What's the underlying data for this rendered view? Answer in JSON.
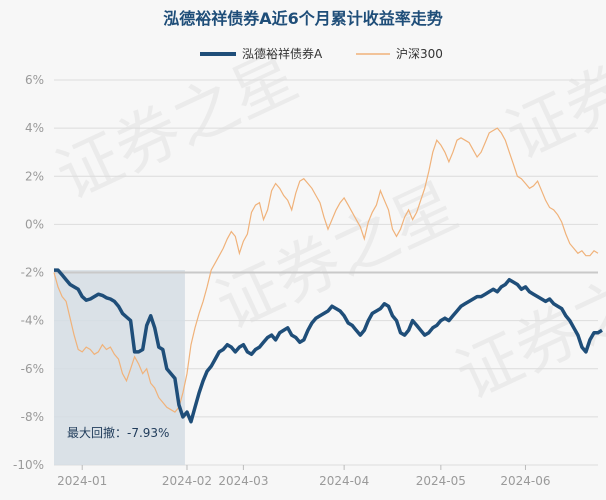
{
  "chart_data": {
    "type": "line",
    "title": "泓德裕祥债券A近6个月累计收益率走势",
    "xlabel": "",
    "ylabel": "",
    "ylim": [
      -10,
      7
    ],
    "yticks": [
      6,
      4,
      2,
      0,
      -2,
      -4,
      -6,
      -8,
      -10
    ],
    "ytick_labels": [
      "6%",
      "4%",
      "2%",
      "0%",
      "-2%",
      "-4%",
      "-6%",
      "-8%",
      "-10%"
    ],
    "x_tick_labels": [
      "2024-01",
      "2024-02",
      "2024-03",
      "2024-04",
      "2024-05",
      "2024-06"
    ],
    "x_tick_positions": [
      7,
      33,
      47,
      72,
      96,
      117
    ],
    "x_range": [
      0,
      135
    ],
    "grid": true,
    "legend_placement": "top-center",
    "reference_line": -2,
    "annotation": "最大回撤：-7.93%",
    "drawdown_range": [
      0,
      32
    ],
    "watermark": "证券之星",
    "colors": {
      "fund": "#1f4e79",
      "index": "#f0b27a",
      "drawdown": "#d5dde4",
      "reference": "#c9c9c9",
      "grid": "#dcdcdc",
      "title": "#1f4e79"
    },
    "series": [
      {
        "name": "泓德裕祥债券A",
        "values": [
          -1.9,
          -1.9,
          -2.1,
          -2.3,
          -2.5,
          -2.6,
          -2.7,
          -3.0,
          -3.15,
          -3.1,
          -3.0,
          -2.9,
          -2.95,
          -3.05,
          -3.1,
          -3.2,
          -3.4,
          -3.7,
          -3.85,
          -4.0,
          -5.3,
          -5.3,
          -5.2,
          -4.2,
          -3.8,
          -4.3,
          -5.1,
          -5.2,
          -6.0,
          -6.2,
          -6.4,
          -7.5,
          -8.0,
          -7.8,
          -8.2,
          -7.6,
          -7.0,
          -6.5,
          -6.1,
          -5.9,
          -5.6,
          -5.3,
          -5.2,
          -5.0,
          -5.1,
          -5.3,
          -5.1,
          -5.0,
          -5.3,
          -5.4,
          -5.2,
          -5.1,
          -4.9,
          -4.7,
          -4.6,
          -4.8,
          -4.5,
          -4.4,
          -4.3,
          -4.6,
          -4.7,
          -4.9,
          -4.8,
          -4.4,
          -4.1,
          -3.9,
          -3.8,
          -3.7,
          -3.6,
          -3.4,
          -3.5,
          -3.6,
          -3.8,
          -4.1,
          -4.2,
          -4.4,
          -4.6,
          -4.4,
          -4.0,
          -3.7,
          -3.6,
          -3.5,
          -3.3,
          -3.4,
          -3.8,
          -4.0,
          -4.5,
          -4.6,
          -4.4,
          -4.0,
          -4.2,
          -4.4,
          -4.6,
          -4.5,
          -4.3,
          -4.2,
          -4.0,
          -3.9,
          -4.0,
          -3.8,
          -3.6,
          -3.4,
          -3.3,
          -3.2,
          -3.1,
          -3.0,
          -3.0,
          -2.9,
          -2.8,
          -2.7,
          -2.8,
          -2.6,
          -2.5,
          -2.3,
          -2.4,
          -2.5,
          -2.7,
          -2.6,
          -2.8,
          -2.9,
          -3.0,
          -3.1,
          -3.2,
          -3.1,
          -3.3,
          -3.4,
          -3.5,
          -3.8,
          -4.0,
          -4.3,
          -4.6,
          -5.1,
          -5.3,
          -4.8,
          -4.5,
          -4.5,
          -4.4
        ],
        "color": "#1f4e79"
      },
      {
        "name": "沪深300",
        "values": [
          -2.0,
          -2.6,
          -3.0,
          -3.2,
          -3.9,
          -4.6,
          -5.2,
          -5.3,
          -5.1,
          -5.2,
          -5.4,
          -5.3,
          -5.0,
          -5.2,
          -5.1,
          -5.4,
          -5.6,
          -6.2,
          -6.5,
          -6.0,
          -5.5,
          -5.8,
          -6.2,
          -6.0,
          -6.6,
          -6.8,
          -7.2,
          -7.4,
          -7.6,
          -7.7,
          -7.8,
          -7.6,
          -7.0,
          -6.2,
          -5.0,
          -4.3,
          -3.7,
          -3.2,
          -2.6,
          -1.9,
          -1.6,
          -1.3,
          -1.0,
          -0.6,
          -0.3,
          -0.5,
          -1.2,
          -0.7,
          -0.4,
          0.5,
          0.8,
          0.9,
          0.2,
          0.6,
          1.4,
          1.7,
          1.5,
          1.2,
          1.0,
          0.6,
          1.3,
          1.8,
          1.9,
          1.7,
          1.5,
          1.2,
          0.9,
          0.3,
          -0.2,
          0.2,
          0.6,
          0.9,
          1.1,
          0.8,
          0.5,
          0.2,
          -0.1,
          -0.6,
          0.1,
          0.5,
          0.8,
          1.4,
          1.0,
          0.6,
          -0.2,
          -0.5,
          -0.2,
          0.3,
          0.6,
          0.2,
          0.5,
          1.0,
          1.5,
          2.2,
          3.0,
          3.5,
          3.3,
          3.0,
          2.6,
          3.0,
          3.5,
          3.6,
          3.5,
          3.4,
          3.1,
          2.8,
          3.0,
          3.4,
          3.8,
          3.9,
          4.0,
          3.8,
          3.5,
          3.0,
          2.5,
          2.0,
          1.9,
          1.7,
          1.5,
          1.6,
          1.8,
          1.4,
          1.0,
          0.7,
          0.6,
          0.4,
          0.1,
          -0.4,
          -0.8,
          -1.0,
          -1.2,
          -1.1,
          -1.3,
          -1.3,
          -1.1,
          -1.2
        ],
        "color": "#f0b27a"
      }
    ]
  }
}
